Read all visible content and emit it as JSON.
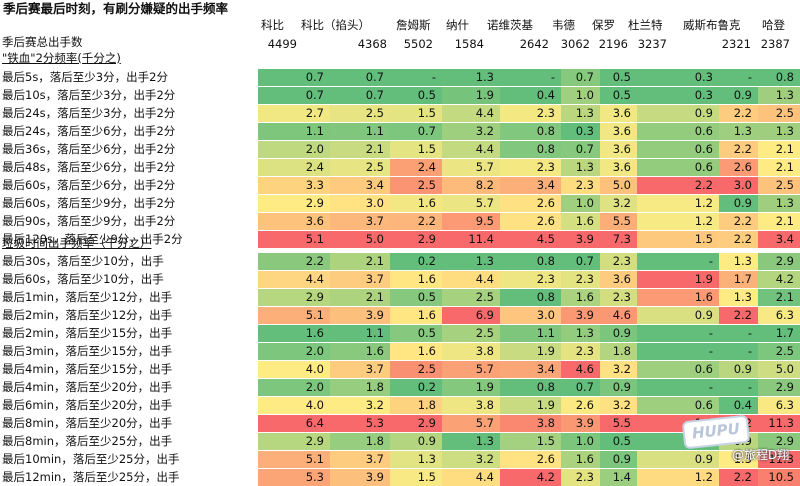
{
  "title": "季后赛最后时刻，有刷分嫌疑的出手频率",
  "players": [
    "科比",
    "科比（掐头）",
    "詹姆斯",
    "纳什",
    "诺维茨基",
    "韦德",
    "保罗",
    "杜兰特",
    "威斯布鲁克",
    "哈登"
  ],
  "totals_label": "季后赛总出手数",
  "totals": [
    "4499",
    "4368",
    "5502",
    "1584",
    "2642",
    "3062",
    "2196",
    "3237",
    "2321",
    "2387"
  ],
  "section1_label": "\"铁血\"2分频率(千分之)",
  "section2_label": "垃圾时间出手频率（千分之）",
  "rows1": [
    {
      "label": "最后5s，落后至少3分，出手2分",
      "values": [
        "0.7",
        "0.7",
        "-",
        "1.3",
        "-",
        "0.7",
        "0.5",
        "0.3",
        "-",
        "0.8"
      ]
    },
    {
      "label": "最后10s，落后至少3分，出手2分",
      "values": [
        "0.7",
        "0.7",
        "0.5",
        "1.9",
        "0.4",
        "1.0",
        "0.5",
        "0.3",
        "0.9",
        "1.3"
      ]
    },
    {
      "label": "最后24s，落后至少3分，出手2分",
      "values": [
        "2.7",
        "2.5",
        "1.5",
        "4.4",
        "2.3",
        "1.3",
        "3.6",
        "0.9",
        "2.2",
        "2.5"
      ]
    },
    {
      "label": "最后24s，落后至少6分，出手2分",
      "values": [
        "1.1",
        "1.1",
        "0.7",
        "3.2",
        "0.8",
        "0.3",
        "3.6",
        "0.6",
        "1.3",
        "1.3"
      ]
    },
    {
      "label": "最后36s，落后至少6分，出手2分",
      "values": [
        "2.0",
        "2.1",
        "1.5",
        "4.4",
        "0.8",
        "0.7",
        "3.6",
        "0.6",
        "2.2",
        "2.1"
      ]
    },
    {
      "label": "最后48s，落后至少6分，出手2分",
      "values": [
        "2.4",
        "2.5",
        "2.4",
        "5.7",
        "2.3",
        "1.3",
        "3.6",
        "0.6",
        "2.6",
        "2.1"
      ]
    },
    {
      "label": "最后60s，落后至少6分，出手2分",
      "values": [
        "3.3",
        "3.4",
        "2.5",
        "8.2",
        "3.4",
        "2.3",
        "5.0",
        "2.2",
        "3.0",
        "2.5"
      ]
    },
    {
      "label": "最后60s，落后至少9分，出手2分",
      "values": [
        "2.9",
        "3.0",
        "1.6",
        "5.7",
        "2.6",
        "1.0",
        "3.2",
        "1.2",
        "0.9",
        "1.3"
      ]
    },
    {
      "label": "最后90s，落后至少9分，出手2分",
      "values": [
        "3.6",
        "3.7",
        "2.2",
        "9.5",
        "2.6",
        "1.6",
        "5.5",
        "1.2",
        "2.2",
        "2.1"
      ]
    },
    {
      "label": "最后120s，落后至少9分，出手2分",
      "values": [
        "5.1",
        "5.0",
        "2.9",
        "11.4",
        "4.5",
        "3.9",
        "7.3",
        "1.5",
        "2.2",
        "3.4"
      ]
    }
  ],
  "rows2": [
    {
      "label": "最后30s，落后至少10分，出手",
      "values": [
        "2.2",
        "2.1",
        "0.2",
        "1.3",
        "0.8",
        "0.7",
        "2.3",
        "-",
        "1.3",
        "2.9"
      ]
    },
    {
      "label": "最后60s，落后至少10分，出手",
      "values": [
        "4.4",
        "3.7",
        "1.6",
        "4.4",
        "2.3",
        "2.3",
        "3.6",
        "1.9",
        "1.7",
        "4.2"
      ]
    },
    {
      "label": "最后1min，落后至少12分，出手",
      "values": [
        "2.9",
        "2.1",
        "0.5",
        "2.5",
        "0.8",
        "1.6",
        "2.3",
        "1.6",
        "1.3",
        "2.1"
      ]
    },
    {
      "label": "最后2min，落后至少12分，出手",
      "values": [
        "5.1",
        "3.9",
        "1.6",
        "6.9",
        "3.0",
        "3.9",
        "4.6",
        "0.9",
        "2.2",
        "6.3"
      ]
    },
    {
      "label": "最后2min，落后至少15分，出手",
      "values": [
        "1.6",
        "1.1",
        "0.5",
        "2.5",
        "1.1",
        "1.3",
        "0.9",
        "-",
        "-",
        "1.7"
      ]
    },
    {
      "label": "最后3min，落后至少15分，出手",
      "values": [
        "2.0",
        "1.6",
        "1.6",
        "3.8",
        "1.9",
        "2.3",
        "1.8",
        "-",
        "-",
        "2.5"
      ]
    },
    {
      "label": "最后4min，落后至少15分，出手",
      "values": [
        "4.0",
        "3.7",
        "2.5",
        "5.7",
        "3.4",
        "4.6",
        "3.2",
        "0.6",
        "0.9",
        "5.0"
      ]
    },
    {
      "label": "最后4min，落后至少20分，出手",
      "values": [
        "2.0",
        "1.8",
        "0.2",
        "1.9",
        "0.8",
        "0.7",
        "0.9",
        "-",
        "-",
        "2.9"
      ]
    },
    {
      "label": "最后6min，落后至少20分，出手",
      "values": [
        "4.0",
        "3.2",
        "1.8",
        "3.8",
        "1.9",
        "2.6",
        "3.2",
        "0.6",
        "0.4",
        "6.3"
      ]
    },
    {
      "label": "最后8min，落后至少20分，出手",
      "values": [
        "6.4",
        "5.3",
        "2.9",
        "5.7",
        "3.8",
        "3.9",
        "5.5",
        "1.9",
        "2.2",
        "11.3"
      ]
    },
    {
      "label": "最后8min，落后至少25分，出手",
      "values": [
        "2.9",
        "1.8",
        "0.9",
        "1.3",
        "1.5",
        "1.0",
        "0.5",
        "0.3",
        "0.9",
        "2.9"
      ]
    },
    {
      "label": "最后10min，落后至少25分，出手",
      "values": [
        "5.1",
        "3.7",
        "1.3",
        "3.2",
        "2.6",
        "1.6",
        "0.9",
        "0.9",
        "1.3",
        "11.3"
      ]
    },
    {
      "label": "最后12min，落后至少25分，出手",
      "values": [
        "5.3",
        "3.9",
        "1.5",
        "4.4",
        "4.2",
        "2.3",
        "1.4",
        "1.2",
        "2.2",
        "10.5"
      ]
    }
  ],
  "watermark_logo": "HUPU",
  "watermark_text": "@旅程D翔",
  "colors": {
    "low": "#63be7b",
    "mid": "#ffeb84",
    "high": "#f8696b",
    "watermark": "#b9c6da"
  }
}
